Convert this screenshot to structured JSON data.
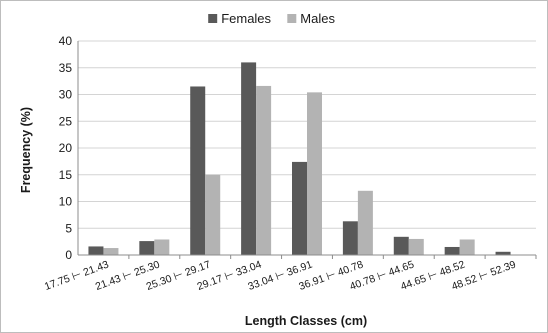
{
  "chart_data": {
    "type": "bar",
    "title": "",
    "xlabel": "Length Classes (cm)",
    "ylabel": "Frequency (%)",
    "ylim": [
      0,
      40
    ],
    "yticks": [
      0,
      5,
      10,
      15,
      20,
      25,
      30,
      35,
      40
    ],
    "grid": "horizontal",
    "legend_position": "top-center",
    "categories": [
      "17.75 ⊢ 21.43",
      "21.43 ⊢ 25.30",
      "25.30 ⊢ 29.17",
      "29.17 ⊢ 33.04",
      "33.04 ⊢ 36.91",
      "36.91 ⊢ 40.78",
      "40.78 ⊢ 44.65",
      "44.65 ⊢ 48.52",
      "48.52 ⊢ 52.39"
    ],
    "series": [
      {
        "name": "Females",
        "color": "#595959",
        "values": [
          1.6,
          2.6,
          31.5,
          36.0,
          17.4,
          6.3,
          3.4,
          1.5,
          0.6
        ]
      },
      {
        "name": "Males",
        "color": "#b3b3b3",
        "values": [
          1.3,
          2.9,
          15.0,
          31.6,
          30.4,
          12.0,
          3.0,
          2.9,
          0.0
        ]
      }
    ]
  }
}
